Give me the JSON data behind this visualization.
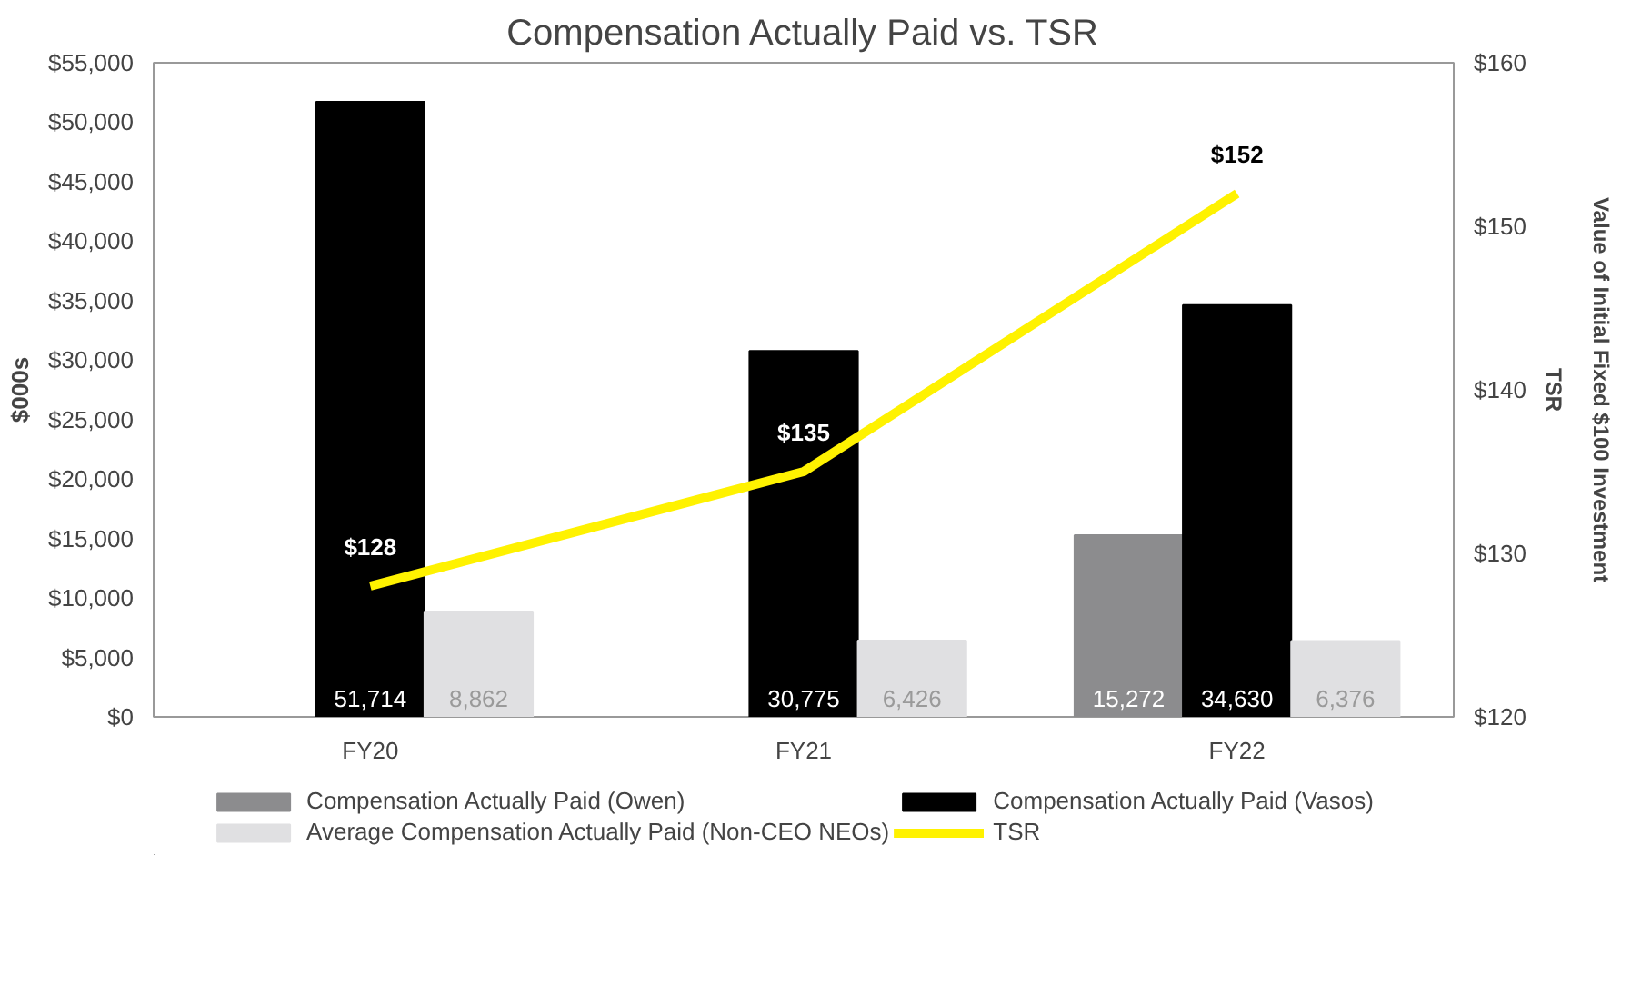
{
  "chart_data": {
    "type": "bar",
    "title": "Compensation Actually Paid vs. TSR",
    "ylabel": "$000s",
    "y2label": "TSR\nValue of Initial Fixed $100 Investment",
    "categories": [
      "FY20",
      "FY21",
      "FY22"
    ],
    "series": [
      {
        "name": "Compensation Actually Paid (Owen)",
        "color": "#8c8c8e",
        "values": [
          null,
          null,
          15272
        ],
        "value_labels": [
          null,
          null,
          "15,272"
        ]
      },
      {
        "name": "Compensation Actually Paid (Vasos)",
        "color": "#000000",
        "values": [
          51714,
          30775,
          34630
        ],
        "value_labels": [
          "51,714",
          "30,775",
          "34,630"
        ]
      },
      {
        "name": "Average Compensation Actually Paid (Non-CEO NEOs)",
        "color": "#e0e0e2",
        "values": [
          8862,
          6426,
          6376
        ],
        "value_labels": [
          "8,862",
          "6,426",
          "6,376"
        ]
      },
      {
        "name": "TSR",
        "type": "line",
        "axis": "y2",
        "color": "#fff200",
        "values": [
          128,
          135,
          152
        ],
        "value_labels": [
          "$128",
          "$135",
          "$152"
        ]
      }
    ],
    "ylim": [
      0,
      55000
    ],
    "yticks": [
      {
        "value": 0,
        "label": "$0"
      },
      {
        "value": 5000,
        "label": "$5,000"
      },
      {
        "value": 10000,
        "label": "$10,000"
      },
      {
        "value": 15000,
        "label": "$15,000"
      },
      {
        "value": 20000,
        "label": "$20,000"
      },
      {
        "value": 25000,
        "label": "$25,000"
      },
      {
        "value": 30000,
        "label": "$30,000"
      },
      {
        "value": 35000,
        "label": "$35,000"
      },
      {
        "value": 40000,
        "label": "$40,000"
      },
      {
        "value": 45000,
        "label": "$45,000"
      },
      {
        "value": 50000,
        "label": "$50,000"
      },
      {
        "value": 55000,
        "label": "$55,000"
      }
    ],
    "y2lim": [
      120,
      160
    ],
    "y2ticks": [
      {
        "value": 120,
        "label": "$120"
      },
      {
        "value": 130,
        "label": "$130"
      },
      {
        "value": 140,
        "label": "$140"
      },
      {
        "value": 150,
        "label": "$150"
      },
      {
        "value": 160,
        "label": "$160"
      }
    ],
    "grid": false,
    "legend": "bottom"
  }
}
